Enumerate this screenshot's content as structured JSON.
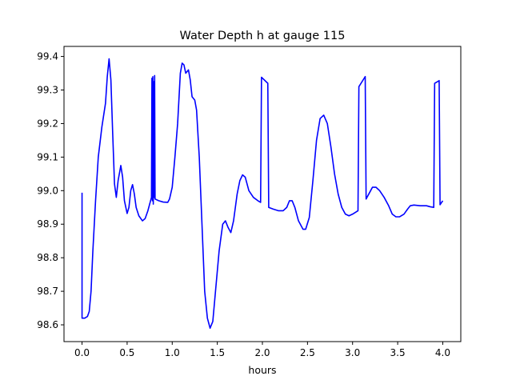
{
  "chart_data": {
    "type": "line",
    "title": "Water Depth h at gauge 115",
    "xlabel": "hours",
    "ylabel": "",
    "xlim": [
      -0.2,
      4.2
    ],
    "ylim": [
      98.55,
      99.43
    ],
    "x_ticks": [
      0.0,
      0.5,
      1.0,
      1.5,
      2.0,
      2.5,
      3.0,
      3.5,
      4.0
    ],
    "x_tick_labels": [
      "0.0",
      "0.5",
      "1.0",
      "1.5",
      "2.0",
      "2.5",
      "3.0",
      "3.5",
      "4.0"
    ],
    "y_ticks": [
      98.6,
      98.7,
      98.8,
      98.9,
      99.0,
      99.1,
      99.2,
      99.3,
      99.4
    ],
    "y_tick_labels": [
      "98.6",
      "98.7",
      "98.8",
      "98.9",
      "99.0",
      "99.1",
      "99.2",
      "99.3",
      "99.4"
    ],
    "grid": false,
    "series": [
      {
        "color": "#0000ff",
        "points": [
          [
            0.0,
            98.994
          ],
          [
            0.0,
            98.62
          ],
          [
            0.03,
            98.62
          ],
          [
            0.06,
            98.625
          ],
          [
            0.08,
            98.64
          ],
          [
            0.1,
            98.7
          ],
          [
            0.12,
            98.82
          ],
          [
            0.15,
            98.97
          ],
          [
            0.18,
            99.1
          ],
          [
            0.22,
            99.19
          ],
          [
            0.26,
            99.26
          ],
          [
            0.28,
            99.34
          ],
          [
            0.3,
            99.393
          ],
          [
            0.32,
            99.33
          ],
          [
            0.34,
            99.17
          ],
          [
            0.36,
            99.02
          ],
          [
            0.38,
            98.98
          ],
          [
            0.4,
            99.03
          ],
          [
            0.43,
            99.075
          ],
          [
            0.45,
            99.04
          ],
          [
            0.47,
            98.97
          ],
          [
            0.5,
            98.932
          ],
          [
            0.52,
            98.95
          ],
          [
            0.54,
            99.0
          ],
          [
            0.56,
            99.018
          ],
          [
            0.58,
            98.99
          ],
          [
            0.6,
            98.95
          ],
          [
            0.63,
            98.925
          ],
          [
            0.67,
            98.91
          ],
          [
            0.7,
            98.917
          ],
          [
            0.73,
            98.94
          ],
          [
            0.77,
            98.98
          ],
          [
            0.775,
            99.335
          ],
          [
            0.78,
            98.97
          ],
          [
            0.785,
            99.34
          ],
          [
            0.79,
            98.96
          ],
          [
            0.795,
            99.325
          ],
          [
            0.8,
            98.98
          ],
          [
            0.805,
            99.343
          ],
          [
            0.81,
            98.975
          ],
          [
            0.85,
            98.97
          ],
          [
            0.9,
            98.966
          ],
          [
            0.95,
            98.965
          ],
          [
            0.97,
            98.975
          ],
          [
            1.0,
            99.01
          ],
          [
            1.03,
            99.1
          ],
          [
            1.06,
            99.2
          ],
          [
            1.09,
            99.35
          ],
          [
            1.11,
            99.38
          ],
          [
            1.13,
            99.375
          ],
          [
            1.15,
            99.35
          ],
          [
            1.18,
            99.36
          ],
          [
            1.2,
            99.33
          ],
          [
            1.22,
            99.28
          ],
          [
            1.25,
            99.27
          ],
          [
            1.27,
            99.24
          ],
          [
            1.3,
            99.1
          ],
          [
            1.33,
            98.9
          ],
          [
            1.36,
            98.7
          ],
          [
            1.39,
            98.62
          ],
          [
            1.42,
            98.59
          ],
          [
            1.45,
            98.61
          ],
          [
            1.48,
            98.7
          ],
          [
            1.52,
            98.82
          ],
          [
            1.56,
            98.9
          ],
          [
            1.59,
            98.91
          ],
          [
            1.62,
            98.89
          ],
          [
            1.65,
            98.875
          ],
          [
            1.68,
            98.91
          ],
          [
            1.72,
            98.99
          ],
          [
            1.75,
            99.03
          ],
          [
            1.78,
            99.047
          ],
          [
            1.81,
            99.04
          ],
          [
            1.85,
            99.0
          ],
          [
            1.9,
            98.98
          ],
          [
            1.95,
            98.97
          ],
          [
            1.98,
            98.965
          ],
          [
            1.99,
            99.338
          ],
          [
            2.06,
            99.32
          ],
          [
            2.07,
            98.95
          ],
          [
            2.12,
            98.945
          ],
          [
            2.18,
            98.94
          ],
          [
            2.23,
            98.94
          ],
          [
            2.27,
            98.95
          ],
          [
            2.3,
            98.97
          ],
          [
            2.33,
            98.97
          ],
          [
            2.36,
            98.95
          ],
          [
            2.4,
            98.91
          ],
          [
            2.45,
            98.885
          ],
          [
            2.48,
            98.885
          ],
          [
            2.52,
            98.92
          ],
          [
            2.56,
            99.03
          ],
          [
            2.6,
            99.15
          ],
          [
            2.64,
            99.215
          ],
          [
            2.68,
            99.225
          ],
          [
            2.72,
            99.2
          ],
          [
            2.76,
            99.13
          ],
          [
            2.8,
            99.05
          ],
          [
            2.84,
            98.99
          ],
          [
            2.88,
            98.95
          ],
          [
            2.92,
            98.93
          ],
          [
            2.96,
            98.925
          ],
          [
            3.0,
            98.93
          ],
          [
            3.06,
            98.94
          ],
          [
            3.07,
            99.31
          ],
          [
            3.14,
            99.34
          ],
          [
            3.15,
            98.975
          ],
          [
            3.2,
            99.0
          ],
          [
            3.22,
            99.01
          ],
          [
            3.26,
            99.01
          ],
          [
            3.3,
            99.0
          ],
          [
            3.35,
            98.98
          ],
          [
            3.4,
            98.955
          ],
          [
            3.44,
            98.93
          ],
          [
            3.48,
            98.922
          ],
          [
            3.52,
            98.922
          ],
          [
            3.57,
            98.93
          ],
          [
            3.61,
            98.945
          ],
          [
            3.64,
            98.955
          ],
          [
            3.68,
            98.957
          ],
          [
            3.75,
            98.955
          ],
          [
            3.82,
            98.955
          ],
          [
            3.86,
            98.952
          ],
          [
            3.9,
            98.95
          ],
          [
            3.91,
            99.32
          ],
          [
            3.96,
            99.328
          ],
          [
            3.97,
            98.958
          ],
          [
            4.0,
            98.97
          ]
        ]
      }
    ]
  }
}
